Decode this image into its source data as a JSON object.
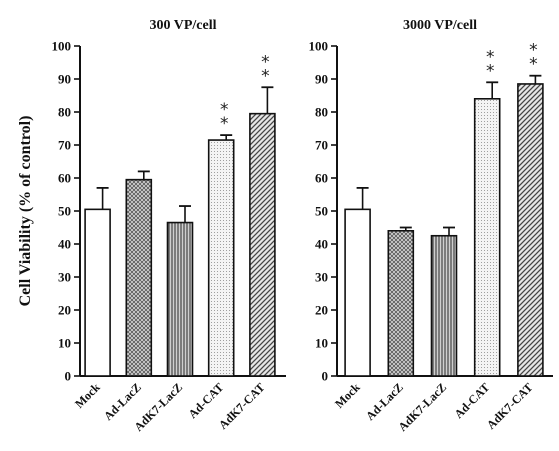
{
  "figure": {
    "ylabel": "Cell Viability (% of control)"
  },
  "chart_data": [
    {
      "type": "bar",
      "title": "300 VP/cell",
      "ylabel": "Cell Viability (% of control)",
      "ylim": [
        0,
        100
      ],
      "yticks": [
        0,
        10,
        20,
        30,
        40,
        50,
        60,
        70,
        80,
        90,
        100
      ],
      "categories": [
        "Mock",
        "Ad-LacZ",
        "AdK7-LacZ",
        "Ad-CAT",
        "AdK7-CAT"
      ],
      "values": [
        50.5,
        59.5,
        46.5,
        71.5,
        79.5
      ],
      "errors": [
        6.5,
        2.5,
        5.0,
        1.5,
        8.0
      ],
      "significance": [
        "",
        "",
        "",
        "**",
        "**"
      ],
      "fills": [
        "white",
        "crosshatch",
        "vertical-stripes",
        "dots",
        "diagonal-stripes"
      ],
      "grid": false
    },
    {
      "type": "bar",
      "title": "3000 VP/cell",
      "ylim": [
        0,
        100
      ],
      "yticks": [
        0,
        10,
        20,
        30,
        40,
        50,
        60,
        70,
        80,
        90,
        100
      ],
      "categories": [
        "Mock",
        "Ad-LacZ",
        "AdK7-LacZ",
        "Ad-CAT",
        "AdK7-CAT"
      ],
      "values": [
        50.5,
        44.0,
        42.5,
        84.0,
        88.5
      ],
      "errors": [
        6.5,
        1.0,
        2.5,
        5.0,
        2.5
      ],
      "significance": [
        "",
        "",
        "",
        "**",
        "**"
      ],
      "fills": [
        "white",
        "crosshatch",
        "vertical-stripes",
        "dots",
        "diagonal-stripes"
      ],
      "grid": false
    }
  ]
}
